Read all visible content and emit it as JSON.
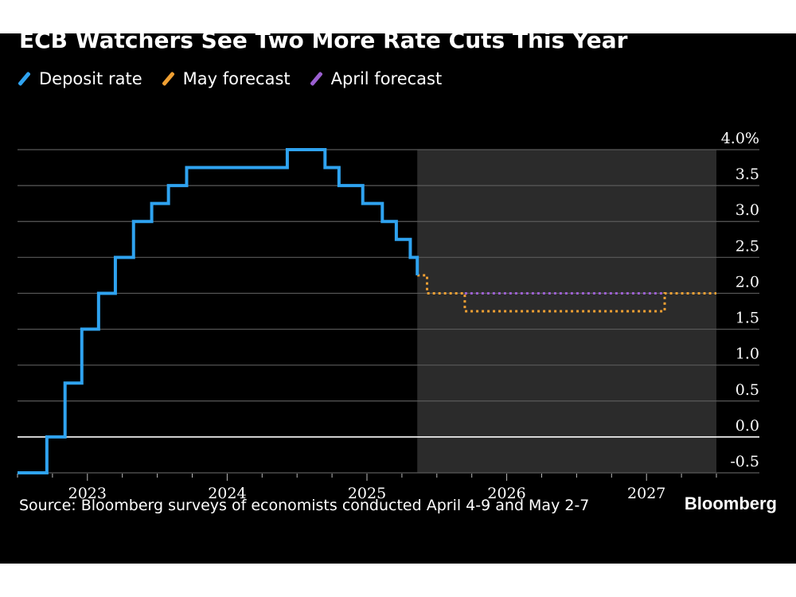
{
  "title": "ECB Watchers See Two More Rate Cuts This Year",
  "legend": [
    {
      "label": "Deposit rate",
      "color": "#2fa3f0",
      "icon": "slash-icon"
    },
    {
      "label": "May forecast",
      "color": "#f0a033",
      "icon": "slash-icon"
    },
    {
      "label": "April forecast",
      "color": "#9b5fd0",
      "icon": "slash-icon"
    }
  ],
  "source": "Source: Bloomberg surveys of economists conducted April 4-9 and May 2-7",
  "brand": "Bloomberg",
  "chart_data": {
    "type": "line",
    "title": "ECB Watchers See Two More Rate Cuts This Year",
    "xlabel": "",
    "ylabel": "",
    "ylim": [
      -0.5,
      4.0
    ],
    "xlim": [
      2022.5,
      2027.5
    ],
    "y_ticks": [
      "4.0%",
      "3.5",
      "3.0",
      "2.5",
      "2.0",
      "1.5",
      "1.0",
      "0.5",
      "0.0",
      "-0.5"
    ],
    "y_tick_values": [
      4.0,
      3.5,
      3.0,
      2.5,
      2.0,
      1.5,
      1.0,
      0.5,
      0.0,
      -0.5
    ],
    "x_ticks": [
      "2023",
      "2024",
      "2025",
      "2026",
      "2027"
    ],
    "x_tick_values": [
      2023.0,
      2024.0,
      2025.0,
      2026.0,
      2027.0
    ],
    "grid": true,
    "legend_position": "top-left",
    "forecast_shading_start": 2025.36,
    "series": [
      {
        "name": "Deposit rate",
        "color": "#2fa3f0",
        "style": "solid",
        "step": true,
        "x": [
          2022.5,
          2022.57,
          2022.71,
          2022.84,
          2022.96,
          2023.08,
          2023.2,
          2023.33,
          2023.46,
          2023.58,
          2023.71,
          2024.43,
          2024.7,
          2024.8,
          2024.97,
          2025.11,
          2025.21,
          2025.31,
          2025.36
        ],
        "y": [
          -0.5,
          -0.5,
          0.0,
          0.75,
          1.5,
          2.0,
          2.5,
          3.0,
          3.25,
          3.5,
          3.75,
          4.0,
          3.75,
          3.5,
          3.25,
          3.0,
          2.75,
          2.5,
          2.25
        ]
      },
      {
        "name": "May forecast",
        "color": "#f0a033",
        "style": "dotted",
        "step": true,
        "x": [
          2025.36,
          2025.43,
          2025.7,
          2027.13,
          2027.5
        ],
        "y": [
          2.25,
          2.0,
          1.75,
          2.0,
          2.0
        ]
      },
      {
        "name": "April forecast",
        "color": "#9b5fd0",
        "style": "dotted",
        "step": true,
        "x": [
          2025.7,
          2027.13
        ],
        "y": [
          2.0,
          2.0
        ]
      }
    ]
  }
}
